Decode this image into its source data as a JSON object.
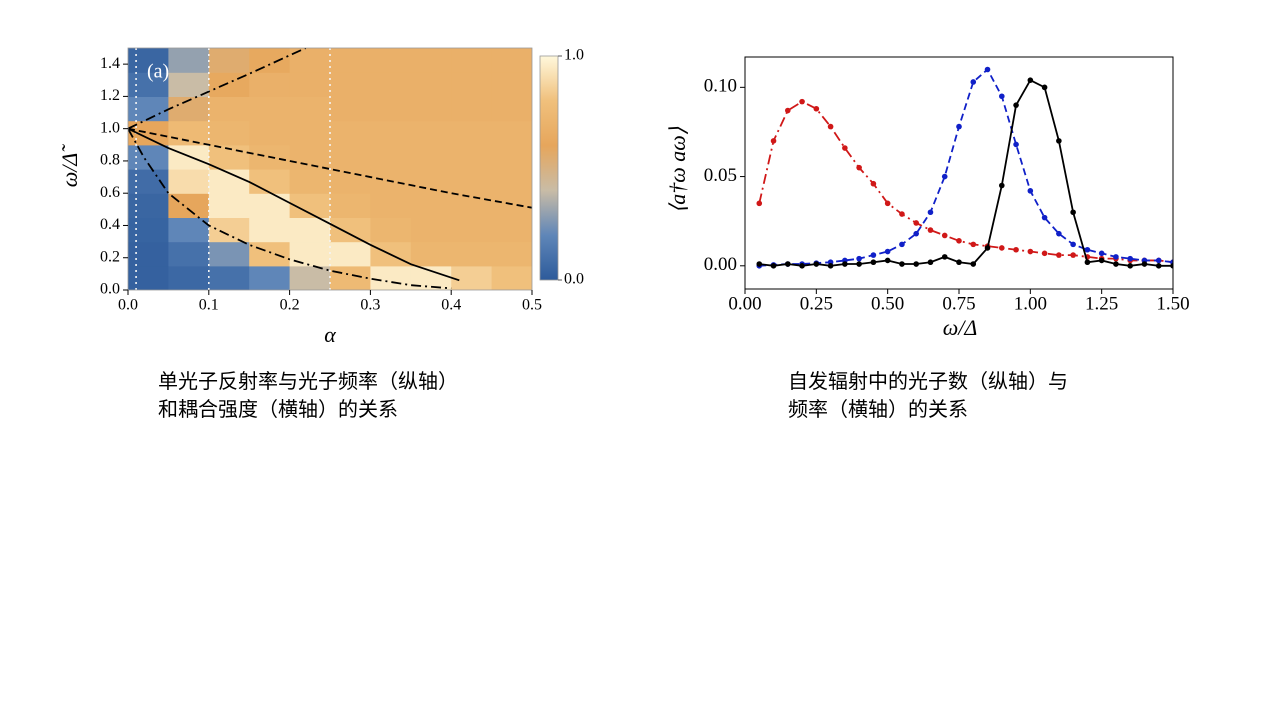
{
  "chart_data": [
    {
      "type": "heatmap",
      "annotation": "(a)",
      "xlabel": "α",
      "ylabel": "ω/Δ̃",
      "x": [
        0.025,
        0.075,
        0.125,
        0.175,
        0.225,
        0.275,
        0.325,
        0.375,
        0.425,
        0.475
      ],
      "y": [
        0.075,
        0.225,
        0.375,
        0.525,
        0.675,
        0.825,
        0.975,
        1.125,
        1.275,
        1.425
      ],
      "z": [
        [
          0.03,
          0.06,
          0.1,
          0.2,
          0.4,
          0.75,
          0.95,
          0.95,
          0.85,
          0.8
        ],
        [
          0.03,
          0.1,
          0.25,
          0.8,
          0.95,
          0.95,
          0.8,
          0.72,
          0.72,
          0.72
        ],
        [
          0.04,
          0.2,
          0.85,
          0.95,
          0.95,
          0.8,
          0.72,
          0.7,
          0.7,
          0.7
        ],
        [
          0.05,
          0.6,
          0.95,
          0.95,
          0.8,
          0.72,
          0.7,
          0.7,
          0.7,
          0.7
        ],
        [
          0.08,
          0.9,
          0.95,
          0.8,
          0.72,
          0.7,
          0.7,
          0.7,
          0.7,
          0.7
        ],
        [
          0.2,
          0.95,
          0.8,
          0.72,
          0.7,
          0.7,
          0.7,
          0.7,
          0.7,
          0.7
        ],
        [
          0.6,
          0.75,
          0.72,
          0.7,
          0.7,
          0.7,
          0.7,
          0.7,
          0.7,
          0.7
        ],
        [
          0.2,
          0.55,
          0.7,
          0.7,
          0.7,
          0.68,
          0.68,
          0.68,
          0.68,
          0.68
        ],
        [
          0.1,
          0.4,
          0.62,
          0.68,
          0.68,
          0.68,
          0.68,
          0.68,
          0.68,
          0.68
        ],
        [
          0.05,
          0.3,
          0.55,
          0.62,
          0.68,
          0.68,
          0.68,
          0.68,
          0.68,
          0.68
        ]
      ],
      "xlim": [
        0,
        0.5
      ],
      "ylim": [
        0,
        1.5
      ],
      "xticks": [
        {
          "value": 0,
          "label": "0.0"
        },
        0.1,
        0.2,
        0.3,
        0.4,
        0.5
      ],
      "yticks": [
        {
          "value": 0,
          "label": "0.0"
        },
        0.2,
        0.4,
        0.6,
        0.8,
        {
          "value": 1,
          "label": "1.0"
        },
        1.2,
        1.4
      ],
      "zlim": [
        0,
        1
      ],
      "zticks": [
        {
          "value": 0,
          "label": "0.0"
        },
        {
          "value": 1,
          "label": "1.0"
        }
      ],
      "colormap": [
        "#2d5b9b",
        "#5f86b8",
        "#c9bca6",
        "#e6a65c",
        "#f0c07c",
        "#fff8dc"
      ],
      "vlines": [
        0.01,
        0.1,
        0.25
      ],
      "lines": [
        {
          "color": "#000000",
          "dash": "dashdot",
          "x": [
            0,
            0.05,
            0.1,
            0.15,
            0.22
          ],
          "values": [
            1,
            1.12,
            1.23,
            1.34,
            1.5
          ]
        },
        {
          "color": "#000000",
          "dash": "dash",
          "x": [
            0,
            0.1,
            0.2,
            0.3,
            0.4,
            0.5
          ],
          "values": [
            1,
            0.9,
            0.8,
            0.7,
            0.6,
            0.51
          ]
        },
        {
          "color": "#000000",
          "dash": "solid",
          "x": [
            0,
            0.05,
            0.1,
            0.15,
            0.2,
            0.25,
            0.3,
            0.35,
            0.41
          ],
          "values": [
            1,
            0.88,
            0.78,
            0.67,
            0.54,
            0.41,
            0.28,
            0.16,
            0.06
          ]
        },
        {
          "color": "#000000",
          "dash": "dashdot",
          "x": [
            0,
            0.02,
            0.05,
            0.1,
            0.15,
            0.2,
            0.25,
            0.3,
            0.35,
            0.4
          ],
          "values": [
            1,
            0.82,
            0.6,
            0.4,
            0.28,
            0.19,
            0.12,
            0.07,
            0.03,
            0.01
          ]
        }
      ],
      "caption": [
        "单光子反射率与光子频率（纵轴）",
        "和耦合强度（横轴）的关系"
      ]
    },
    {
      "type": "line",
      "xlabel": "ω/Δ",
      "ylabel": "⟨a†ω aω⟩",
      "x": [
        0.05,
        0.1,
        0.15,
        0.2,
        0.25,
        0.3,
        0.35,
        0.4,
        0.45,
        0.5,
        0.55,
        0.6,
        0.65,
        0.7,
        0.75,
        0.8,
        0.85,
        0.9,
        0.95,
        1.0,
        1.05,
        1.1,
        1.15,
        1.2,
        1.25,
        1.3,
        1.35,
        1.4,
        1.45,
        1.5
      ],
      "series": [
        {
          "color": "#d01818",
          "dash": "dashdot",
          "values": [
            0.035,
            0.07,
            0.087,
            0.092,
            0.088,
            0.078,
            0.066,
            0.055,
            0.046,
            0.035,
            0.029,
            0.024,
            0.02,
            0.017,
            0.014,
            0.012,
            0.011,
            0.01,
            0.009,
            0.008,
            0.007,
            0.006,
            0.006,
            0.005,
            0.004,
            0.004,
            0.003,
            0.003,
            0.003,
            0.002
          ]
        },
        {
          "color": "#1020c8",
          "dash": "dash",
          "values": [
            0.0,
            0.0005,
            0.001,
            0.001,
            0.0015,
            0.002,
            0.003,
            0.004,
            0.006,
            0.008,
            0.012,
            0.018,
            0.03,
            0.05,
            0.078,
            0.103,
            0.11,
            0.095,
            0.068,
            0.042,
            0.027,
            0.018,
            0.012,
            0.009,
            0.007,
            0.005,
            0.004,
            0.003,
            0.003,
            0.002
          ]
        },
        {
          "color": "#000000",
          "dash": "solid",
          "values": [
            0.001,
            0.0,
            0.001,
            0.0,
            0.001,
            0.0,
            0.001,
            0.001,
            0.002,
            0.003,
            0.001,
            0.001,
            0.002,
            0.005,
            0.002,
            0.001,
            0.01,
            0.045,
            0.09,
            0.104,
            0.1,
            0.07,
            0.03,
            0.002,
            0.003,
            0.001,
            0.0,
            0.001,
            0.0,
            0.0
          ]
        }
      ],
      "xlim": [
        0,
        1.5
      ],
      "ylim": [
        -0.013,
        0.117
      ],
      "xticks": [
        {
          "value": 0,
          "label": "0.00"
        },
        0.25,
        {
          "value": 0.5,
          "label": "0.50"
        },
        0.75,
        {
          "value": 1,
          "label": "1.00"
        },
        1.25,
        {
          "value": 1.5,
          "label": "1.50"
        }
      ],
      "yticks": [
        {
          "value": 0,
          "label": "0.00"
        },
        0.05,
        {
          "value": 0.1,
          "label": "0.10"
        }
      ],
      "caption": [
        "自发辐射中的光子数（纵轴）与",
        "频率（横轴）的关系"
      ]
    }
  ]
}
